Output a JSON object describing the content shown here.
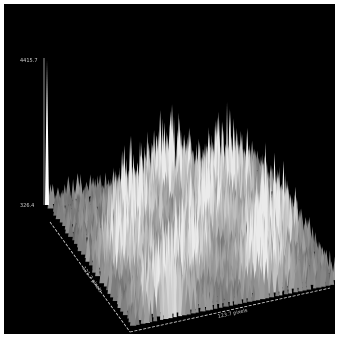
{
  "image": {
    "z_max_label": "4415.7",
    "z_min_label": "326.4",
    "y_axis_label": "121.7 pixels",
    "x_axis_label": "123.7 pixels"
  }
}
